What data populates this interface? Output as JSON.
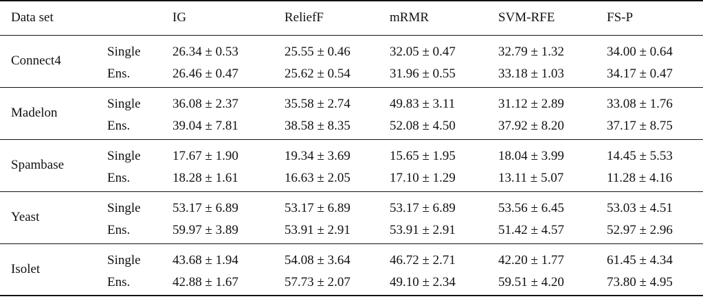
{
  "header": {
    "dataset": "Data set",
    "methods": [
      "IG",
      "ReliefF",
      "mRMR",
      "SVM-RFE",
      "FS-P"
    ]
  },
  "rows": [
    {
      "dataset": "Connect4",
      "single_label": "Single",
      "ens_label": "Ens.",
      "single": [
        "26.34 ± 0.53",
        "25.55 ± 0.46",
        "32.05 ± 0.47",
        "32.79 ± 1.32",
        "34.00 ± 0.64"
      ],
      "ens": [
        "26.46 ± 0.47",
        "25.62 ± 0.54",
        "31.96 ± 0.55",
        "33.18 ± 1.03",
        "34.17 ± 0.47"
      ]
    },
    {
      "dataset": "Madelon",
      "single_label": "Single",
      "ens_label": "Ens.",
      "single": [
        "36.08 ± 2.37",
        "35.58 ± 2.74",
        "49.83 ± 3.11",
        "31.12 ± 2.89",
        "33.08 ± 1.76"
      ],
      "ens": [
        "39.04 ± 7.81",
        "38.58 ± 8.35",
        "52.08 ± 4.50",
        "37.92 ± 8.20",
        "37.17 ± 8.75"
      ]
    },
    {
      "dataset": "Spambase",
      "single_label": "Single",
      "ens_label": "Ens.",
      "single": [
        "17.67 ± 1.90",
        "19.34 ± 3.69",
        "15.65 ± 1.95",
        "18.04 ± 3.99",
        "14.45 ± 5.53"
      ],
      "ens": [
        "18.28 ± 1.61",
        "16.63 ± 2.05",
        "17.10 ± 1.29",
        "13.11 ± 5.07",
        "11.28 ± 4.16"
      ]
    },
    {
      "dataset": "Yeast",
      "single_label": "Single",
      "ens_label": "Ens.",
      "single": [
        "53.17 ± 6.89",
        "53.17 ± 6.89",
        "53.17 ± 6.89",
        "53.56 ± 6.45",
        "53.03 ± 4.51"
      ],
      "ens": [
        "59.97 ± 3.89",
        "53.91 ± 2.91",
        "53.91 ± 2.91",
        "51.42 ± 4.57",
        "52.97 ± 2.96"
      ]
    },
    {
      "dataset": "Isolet",
      "single_label": "Single",
      "ens_label": "Ens.",
      "single": [
        "43.68 ± 1.94",
        "54.08 ± 3.64",
        "46.72 ± 2.71",
        "42.20 ± 1.77",
        "61.45 ± 4.34"
      ],
      "ens": [
        "42.88 ± 1.67",
        "57.73 ± 2.07",
        "49.10 ± 2.34",
        "59.51 ± 4.20",
        "73.80 ± 4.95"
      ]
    }
  ]
}
